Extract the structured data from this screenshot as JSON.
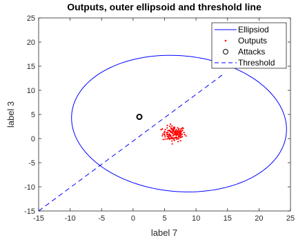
{
  "chart_data": {
    "type": "scatter",
    "title": "Outputs, outer ellipsoid and threshold line",
    "xlabel": "label 7",
    "ylabel": "label 3",
    "xlim": [
      -15,
      25
    ],
    "ylim": [
      -15,
      25
    ],
    "x_ticks": [
      -15,
      -10,
      -5,
      0,
      5,
      10,
      15,
      20,
      25
    ],
    "y_ticks": [
      -15,
      -10,
      -5,
      0,
      5,
      10,
      15,
      20,
      25
    ],
    "x_tick_labels": [
      "-15",
      "-10",
      "-5",
      "0",
      "5",
      "10",
      "15",
      "20",
      "25"
    ],
    "y_tick_labels": [
      "-15",
      "-10",
      "-5",
      "0",
      "5",
      "10",
      "15",
      "20",
      "25"
    ],
    "grid": false,
    "legend_position": "top-right",
    "legend": [
      "Ellipsiod",
      "Outputs",
      "Attacks",
      "Threshold"
    ],
    "series": [
      {
        "name": "Ellipsiod",
        "kind": "ellipse",
        "color": "#0000ff",
        "center": [
          7.3,
          3.1
        ],
        "semi_axes": [
          17.2,
          14.0
        ],
        "rotation_deg": -12
      },
      {
        "name": "Outputs",
        "kind": "scatter",
        "color": "#ff0000",
        "center": [
          6.5,
          1.0
        ],
        "spread": [
          0.9,
          0.8
        ],
        "count": 150
      },
      {
        "name": "Attacks",
        "kind": "marker",
        "color": "#000000",
        "points": [
          [
            1.0,
            4.5
          ]
        ]
      },
      {
        "name": "Threshold",
        "kind": "line",
        "color": "#0000ff",
        "dash": true,
        "points": [
          [
            -15,
            -15
          ],
          [
            14.5,
            13.5
          ]
        ]
      }
    ]
  }
}
